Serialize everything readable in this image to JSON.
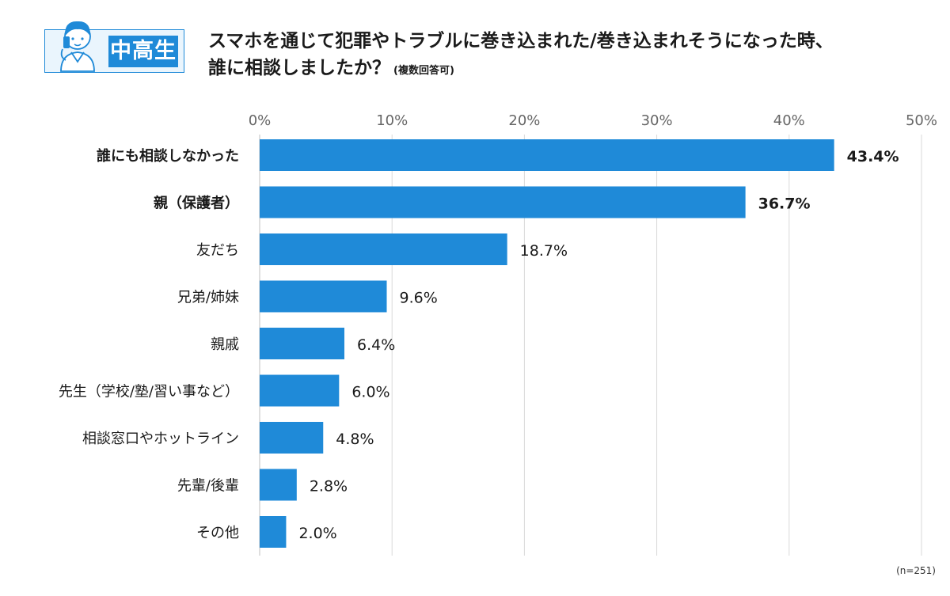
{
  "header": {
    "badge": "中高生",
    "title_line1": "スマホを通じて犯罪やトラブルに巻き込まれた/巻き込まれそうになった時、",
    "title_line2": "誰に相談しましたか？",
    "title_note": "(複数回答可)"
  },
  "chart_data": {
    "type": "bar",
    "orientation": "horizontal",
    "categories": [
      "誰にも相談しなかった",
      "親（保護者）",
      "友だち",
      "兄弟/姉妹",
      "親戚",
      "先生（学校/塾/習い事など）",
      "相談窓口やホットライン",
      "先輩/後輩",
      "その他"
    ],
    "values": [
      43.4,
      36.7,
      18.7,
      9.6,
      6.4,
      6.0,
      4.8,
      2.8,
      2.0
    ],
    "value_labels": [
      "43.4%",
      "36.7%",
      "18.7%",
      "9.6%",
      "6.4%",
      "6.0%",
      "4.8%",
      "2.8%",
      "2.0%"
    ],
    "bold_categories": [
      0,
      1
    ],
    "xlim": [
      0,
      50
    ],
    "tick_labels": [
      "0%",
      "10%",
      "20%",
      "30%",
      "40%",
      "50%"
    ],
    "tick_values": [
      0,
      10,
      20,
      30,
      40,
      50
    ],
    "grid": true,
    "bar_color": "#1f8ad8",
    "grid_color": "#d9d9d9"
  },
  "footer": {
    "sample_size": "(n=251)"
  }
}
